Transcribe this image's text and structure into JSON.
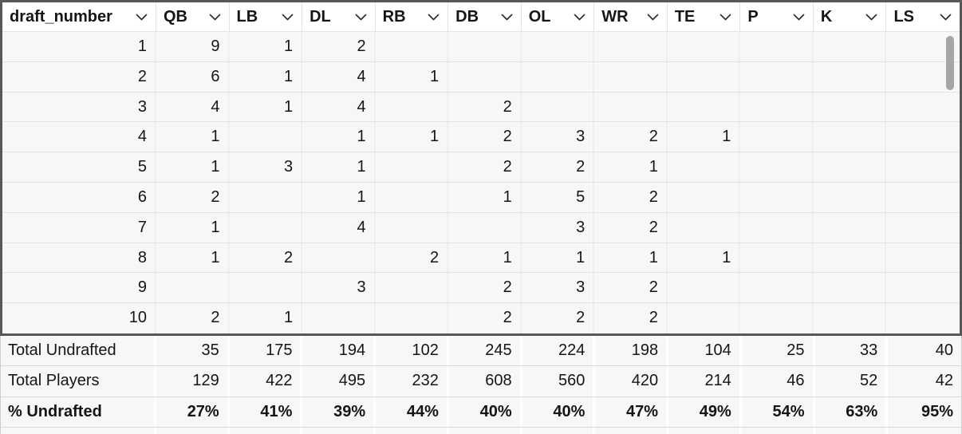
{
  "table": {
    "columns": [
      "draft_number",
      "QB",
      "LB",
      "DL",
      "RB",
      "DB",
      "OL",
      "WR",
      "TE",
      "P",
      "K",
      "LS"
    ],
    "header_icon": "chevron-down-icon",
    "rows": [
      [
        "1",
        "9",
        "1",
        "2",
        "",
        "",
        "",
        "",
        "",
        "",
        "",
        ""
      ],
      [
        "2",
        "6",
        "1",
        "4",
        "1",
        "",
        "",
        "",
        "",
        "",
        "",
        ""
      ],
      [
        "3",
        "4",
        "1",
        "4",
        "",
        "2",
        "",
        "",
        "",
        "",
        "",
        ""
      ],
      [
        "4",
        "1",
        "",
        "1",
        "1",
        "2",
        "3",
        "2",
        "1",
        "",
        "",
        ""
      ],
      [
        "5",
        "1",
        "3",
        "1",
        "",
        "2",
        "2",
        "1",
        "",
        "",
        "",
        ""
      ],
      [
        "6",
        "2",
        "",
        "1",
        "",
        "1",
        "5",
        "2",
        "",
        "",
        "",
        ""
      ],
      [
        "7",
        "1",
        "",
        "4",
        "",
        "",
        "3",
        "2",
        "",
        "",
        "",
        ""
      ],
      [
        "8",
        "1",
        "2",
        "",
        "2",
        "1",
        "1",
        "1",
        "1",
        "",
        "",
        ""
      ],
      [
        "9",
        "",
        "",
        "3",
        "",
        "2",
        "3",
        "2",
        "",
        "",
        "",
        ""
      ],
      [
        "10",
        "2",
        "1",
        "",
        "",
        "2",
        "2",
        "2",
        "",
        "",
        "",
        ""
      ]
    ],
    "footer_rows": [
      {
        "label": "Total Undrafted",
        "bold": false,
        "values": [
          "35",
          "175",
          "194",
          "102",
          "245",
          "224",
          "198",
          "104",
          "25",
          "33",
          "40"
        ]
      },
      {
        "label": "Total Players",
        "bold": false,
        "values": [
          "129",
          "422",
          "495",
          "232",
          "608",
          "560",
          "420",
          "214",
          "46",
          "52",
          "42"
        ]
      },
      {
        "label": "% Undrafted",
        "bold": true,
        "values": [
          "27%",
          "41%",
          "39%",
          "44%",
          "40%",
          "40%",
          "47%",
          "49%",
          "54%",
          "63%",
          "95%"
        ]
      }
    ]
  },
  "scrollbar": {
    "orientation": "vertical",
    "visible": true
  },
  "colors": {
    "selection_border": "#58585a",
    "header_bg": "#ffffff",
    "cell_bg": "#f7f7f7",
    "grid_line": "#e3e3e3",
    "vertical_gap": "#ffffff",
    "text": "#151517",
    "scrollbar_thumb": "#a6a6a6"
  }
}
